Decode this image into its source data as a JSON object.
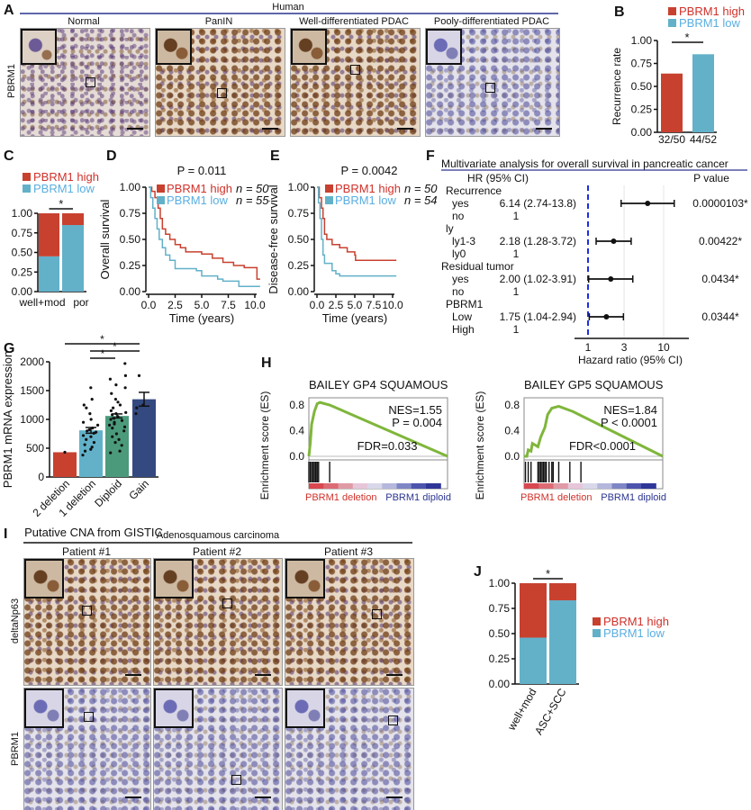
{
  "panel_labels": [
    "A",
    "B",
    "C",
    "D",
    "E",
    "F",
    "G",
    "H",
    "I",
    "J"
  ],
  "colors": {
    "high": "#c8412f",
    "low": "#62b1c9",
    "high_text": "#d0312a",
    "low_text": "#5aaee0",
    "diploid": "#4b9a7c",
    "gain": "#34497f",
    "gsea_line": "#7fb63b",
    "ref_line": "#1f2ee0",
    "title_rule": "#2c3590"
  },
  "panel_A": {
    "title": "Human",
    "row_label": "PBRM1",
    "columns": [
      "Normal",
      "PanIN",
      "Well-differentiated PDAC",
      "Pooly-differentiated PDAC"
    ]
  },
  "panel_I": {
    "title": "Adenosquamous carcinoma",
    "columns": [
      "Patient #1",
      "Patient #2",
      "Patient #3"
    ],
    "rows": [
      "deltaNp63",
      "PBRM1"
    ]
  },
  "chart_data": [
    {
      "panel": "B",
      "type": "bar",
      "ylabel": "Recurrence rate",
      "categories": [
        "32/50",
        "44/52"
      ],
      "values": [
        0.64,
        0.85
      ],
      "legend": [
        "PBRM1 high",
        "PBRM1 low"
      ],
      "ylim": [
        0,
        1
      ],
      "yticks": [
        "0.00",
        "0.25",
        "0.50",
        "0.75",
        "1.00"
      ],
      "significance": "*"
    },
    {
      "panel": "C",
      "type": "bar",
      "stacked": true,
      "categories": [
        "well+mod",
        "por"
      ],
      "series": [
        {
          "name": "PBRM1 low",
          "values": [
            0.45,
            0.85
          ]
        },
        {
          "name": "PBRM1 high",
          "values": [
            0.55,
            0.15
          ]
        }
      ],
      "legend": [
        "PBRM1 high",
        "PBRM1 low"
      ],
      "ylim": [
        0,
        1
      ],
      "yticks": [
        "0.00",
        "0.25",
        "0.50",
        "0.75",
        "1.00"
      ],
      "significance": "*"
    },
    {
      "panel": "D",
      "type": "line",
      "step": true,
      "ylabel": "Overall survival",
      "xlabel": "Time (years)",
      "pvalue": "P = 0.011",
      "xlim": [
        0,
        10.5
      ],
      "ylim": [
        0,
        1
      ],
      "xticks": [
        "0.0",
        "2.5",
        "5.0",
        "7.5",
        "10.0"
      ],
      "yticks": [
        "0.00",
        "0.25",
        "0.50",
        "0.75",
        "1.00"
      ],
      "series": [
        {
          "name": "PBRM1 high",
          "n": "n = 50",
          "x": [
            0,
            0.3,
            0.6,
            0.9,
            1.1,
            1.3,
            1.6,
            2,
            2.5,
            3,
            3.5,
            5,
            6,
            7,
            8,
            9,
            10.2,
            10.5
          ],
          "y": [
            1,
            0.96,
            0.9,
            0.8,
            0.7,
            0.6,
            0.55,
            0.5,
            0.45,
            0.42,
            0.38,
            0.36,
            0.32,
            0.28,
            0.25,
            0.23,
            0.12,
            0.12
          ]
        },
        {
          "name": "PBRM1 low",
          "n": "n = 55",
          "x": [
            0,
            0.2,
            0.4,
            0.6,
            0.8,
            1,
            1.3,
            1.6,
            2,
            2.5,
            4.5,
            5,
            6.5,
            7,
            8.5,
            10.5
          ],
          "y": [
            1,
            0.9,
            0.8,
            0.7,
            0.6,
            0.5,
            0.42,
            0.35,
            0.3,
            0.22,
            0.2,
            0.15,
            0.12,
            0.1,
            0.05,
            0.05
          ]
        }
      ]
    },
    {
      "panel": "E",
      "type": "line",
      "step": true,
      "ylabel": "Disease-free survival",
      "xlabel": "Time (years)",
      "pvalue": "P = 0.0042",
      "xlim": [
        0,
        10.5
      ],
      "ylim": [
        0,
        1
      ],
      "xticks": [
        "0.0",
        "2.5",
        "5.0",
        "7.5",
        "10.0"
      ],
      "yticks": [
        "0.00",
        "0.25",
        "0.50",
        "0.75",
        "1.00"
      ],
      "series": [
        {
          "name": "PBRM1 high",
          "n": "n = 50",
          "x": [
            0,
            0.3,
            0.6,
            0.8,
            1,
            1.3,
            2,
            3,
            4,
            5,
            5.1,
            10.5
          ],
          "y": [
            1,
            0.9,
            0.8,
            0.7,
            0.55,
            0.5,
            0.45,
            0.42,
            0.38,
            0.35,
            0.3,
            0.3
          ]
        },
        {
          "name": "PBRM1 low",
          "n": "n = 54",
          "x": [
            0,
            0.2,
            0.4,
            0.6,
            0.8,
            1,
            2,
            2.5,
            3,
            10.5
          ],
          "y": [
            1,
            0.85,
            0.7,
            0.5,
            0.35,
            0.27,
            0.2,
            0.17,
            0.15,
            0.15
          ]
        }
      ]
    },
    {
      "panel": "F",
      "type": "forest",
      "title": "Multivariate analysis for overall survival in pancreatic cancer",
      "hr_header": "HR (95% CI)",
      "p_header": "P value",
      "xlabel": "Hazard ratio (95% CI)",
      "xscale": "log",
      "xticks": [
        "1",
        "3",
        "10"
      ],
      "reference": 1,
      "rows": [
        {
          "variable": "Recurrence",
          "level": "yes",
          "ref": "no",
          "hr_text": "6.14 (2.74-13.8)",
          "ref_text": "1",
          "hr": 6.14,
          "lo": 2.74,
          "hi": 13.8,
          "p": "0.0000103*"
        },
        {
          "variable": "ly",
          "level": "ly1-3",
          "ref": "ly0",
          "hr_text": "2.18 (1.28-3.72)",
          "ref_text": "1",
          "hr": 2.18,
          "lo": 1.28,
          "hi": 3.72,
          "p": "0.00422*"
        },
        {
          "variable": "Residual tumor",
          "level": "yes",
          "ref": "no",
          "hr_text": "2.00 (1.02-3.91)",
          "ref_text": "1",
          "hr": 2.0,
          "lo": 1.02,
          "hi": 3.91,
          "p": "0.0434*"
        },
        {
          "variable": "PBRM1",
          "level": "Low",
          "ref": "High",
          "hr_text": "1.75 (1.04-2.94)",
          "ref_text": "1",
          "hr": 1.75,
          "lo": 1.04,
          "hi": 2.94,
          "p": "0.0344*"
        }
      ]
    },
    {
      "panel": "G",
      "type": "bar",
      "ylabel": "PBRM1 mRNA expression",
      "xlabel": "Putative CNA from GISTIC",
      "ylim": [
        0,
        2000
      ],
      "yticks": [
        "0",
        "500",
        "1000",
        "1500",
        "2000"
      ],
      "categories": [
        "2 deletion",
        "1 deletion",
        "Diploid",
        "Gain"
      ],
      "values": [
        430,
        810,
        1060,
        1350
      ],
      "sem": [
        0,
        50,
        35,
        120
      ],
      "points": [
        [
          430
        ],
        [
          1550,
          1350,
          1250,
          1200,
          1100,
          1000,
          950,
          900,
          850,
          820,
          800,
          780,
          760,
          720,
          700,
          650,
          600,
          560,
          520,
          480,
          450,
          380
        ],
        [
          1970,
          1760,
          1700,
          1600,
          1550,
          1450,
          1350,
          1300,
          1250,
          1200,
          1150,
          1120,
          1100,
          1080,
          1050,
          1020,
          1000,
          980,
          950,
          920,
          900,
          870,
          850,
          800,
          750,
          700,
          650,
          600,
          550,
          450,
          420
        ],
        [
          1760,
          1250,
          1200,
          1100
        ]
      ],
      "significance": [
        [
          "2 deletion",
          "Gain",
          "*"
        ],
        [
          "1 deletion",
          "Gain",
          "*"
        ],
        [
          "1 deletion",
          "Diploid",
          "*"
        ]
      ]
    },
    {
      "panel": "H",
      "type": "line",
      "title": "BAILEY GP4 SQUAMOUS",
      "ylabel": "Enrichment score (ES)",
      "yticks": [
        "0.0",
        "0.4",
        "0.8"
      ],
      "ylim": [
        0,
        0.8
      ],
      "nes": "NES=1.55",
      "pvalue": "P = 0.004",
      "fdr": "FDR=0.033",
      "left_label": "PBRM1 deletion",
      "right_label": "PBRM1 diploid",
      "x": [
        0,
        0.01,
        0.02,
        0.04,
        0.06,
        0.08,
        0.15,
        1
      ],
      "y": [
        0,
        0.2,
        0.5,
        0.7,
        0.82,
        0.84,
        0.8,
        0
      ],
      "hits": [
        0.0,
        0.01,
        0.02,
        0.03,
        0.04,
        0.05,
        0.06,
        0.07,
        0.15
      ]
    },
    {
      "panel": "H",
      "type": "line",
      "title": "BAILEY GP5 SQUAMOUS",
      "ylabel": "Enrichment score (ES)",
      "yticks": [
        "0.0",
        "0.4",
        "0.8"
      ],
      "ylim": [
        0,
        0.8
      ],
      "nes": "NES=1.84",
      "pvalue": "P < 0.0001",
      "fdr": "FDR<0.0001",
      "left_label": "PBRM1 deletion",
      "right_label": "PBRM1 diploid",
      "x": [
        0,
        0.02,
        0.03,
        0.05,
        0.06,
        0.1,
        0.12,
        0.15,
        0.17,
        0.2,
        0.25,
        0.35,
        1
      ],
      "y": [
        0,
        0,
        0.1,
        0.08,
        0.2,
        0.15,
        0.3,
        0.45,
        0.65,
        0.75,
        0.78,
        0.7,
        0
      ],
      "hits": [
        0.01,
        0.03,
        0.05,
        0.1,
        0.11,
        0.12,
        0.13,
        0.14,
        0.15,
        0.16,
        0.18,
        0.2,
        0.21,
        0.25,
        0.33,
        0.41
      ]
    },
    {
      "panel": "J",
      "type": "bar",
      "stacked": true,
      "categories": [
        "well+mod",
        "ASC+SCC"
      ],
      "series": [
        {
          "name": "PBRM1 low",
          "values": [
            0.46,
            0.83
          ]
        },
        {
          "name": "PBRM1 high",
          "values": [
            0.54,
            0.17
          ]
        }
      ],
      "legend": [
        "PBRM1 high",
        "PBRM1 low"
      ],
      "ylim": [
        0,
        1
      ],
      "yticks": [
        "0.00",
        "0.25",
        "0.50",
        "0.75",
        "1.00"
      ],
      "significance": "*"
    }
  ]
}
